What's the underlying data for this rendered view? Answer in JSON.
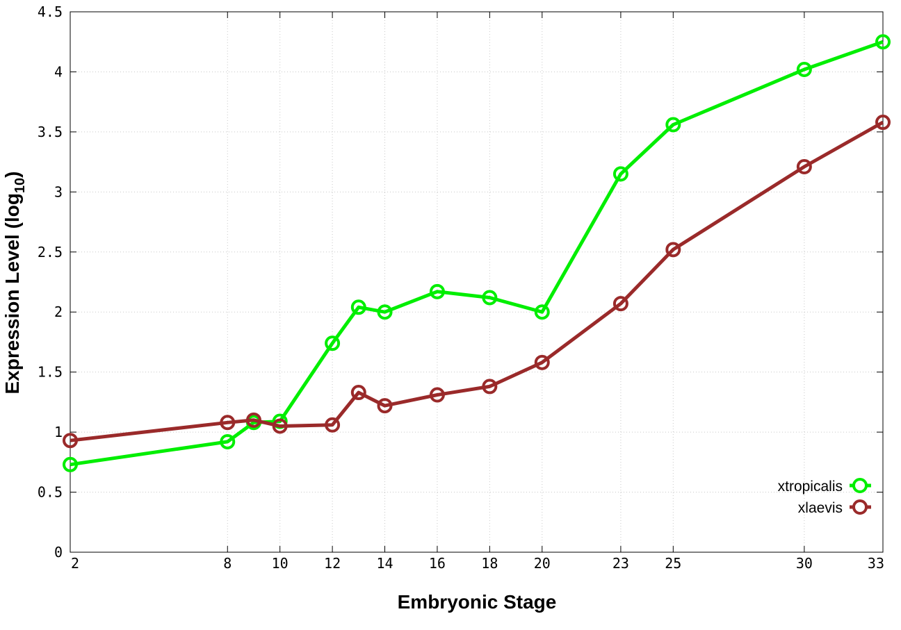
{
  "chart_data": {
    "type": "line",
    "xlabel": "Embryonic Stage",
    "ylabel": {
      "main": "Expression Level (log",
      "subscript": "10",
      "close": ")"
    },
    "ylim": [
      0,
      4.5
    ],
    "yticks": [
      "0",
      "0.5",
      "1",
      "1.5",
      "2",
      "2.5",
      "3",
      "3.5",
      "4",
      "4.5"
    ],
    "x": [
      "2",
      "8",
      "9",
      "10",
      "12",
      "13",
      "14",
      "16",
      "18",
      "20",
      "23",
      "25",
      "30",
      "33"
    ],
    "xtick_labels": [
      "2",
      "8",
      "10",
      "12",
      "14",
      "16",
      "18",
      "20",
      "23",
      "25",
      "30",
      "33"
    ],
    "grid": true,
    "legend_position": "bottom-right",
    "series": [
      {
        "name": "xtropicalis",
        "color": "#00ee00",
        "values": [
          0.73,
          0.92,
          1.08,
          1.09,
          1.74,
          2.04,
          2.0,
          2.17,
          2.12,
          2.0,
          3.15,
          3.56,
          4.02,
          4.25
        ]
      },
      {
        "name": "xlaevis",
        "color": "#9a2a2a",
        "values": [
          0.93,
          1.08,
          1.1,
          1.05,
          1.06,
          1.33,
          1.22,
          1.31,
          1.38,
          1.58,
          2.07,
          2.52,
          3.21,
          3.58
        ]
      }
    ]
  }
}
